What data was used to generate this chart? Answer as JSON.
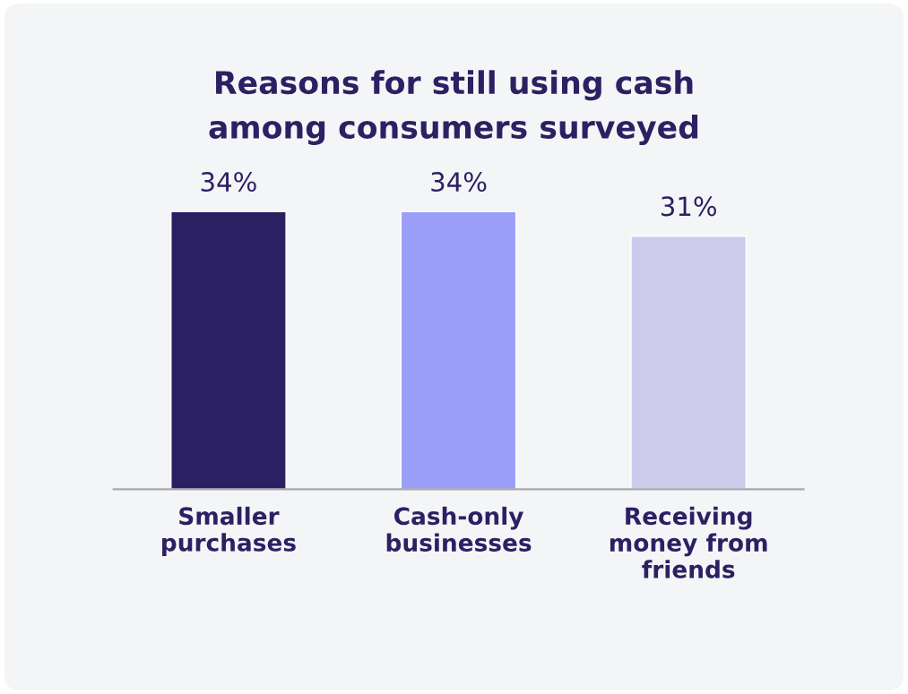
{
  "chart_data": {
    "type": "bar",
    "title": "Reasons for still using cash\namong consumers surveyed",
    "categories": [
      "Smaller\npurchases",
      "Cash-only\nbusinesses",
      "Receiving\nmoney from\nfriends"
    ],
    "values": [
      34,
      34,
      31
    ],
    "colors": [
      "#2b2162",
      "#9b9ef8",
      "#cccbeb"
    ],
    "relative": false,
    "data_labels": true,
    "value_labels": [
      "34%",
      "34%",
      "31%"
    ],
    "grid": false,
    "legend": false
  }
}
